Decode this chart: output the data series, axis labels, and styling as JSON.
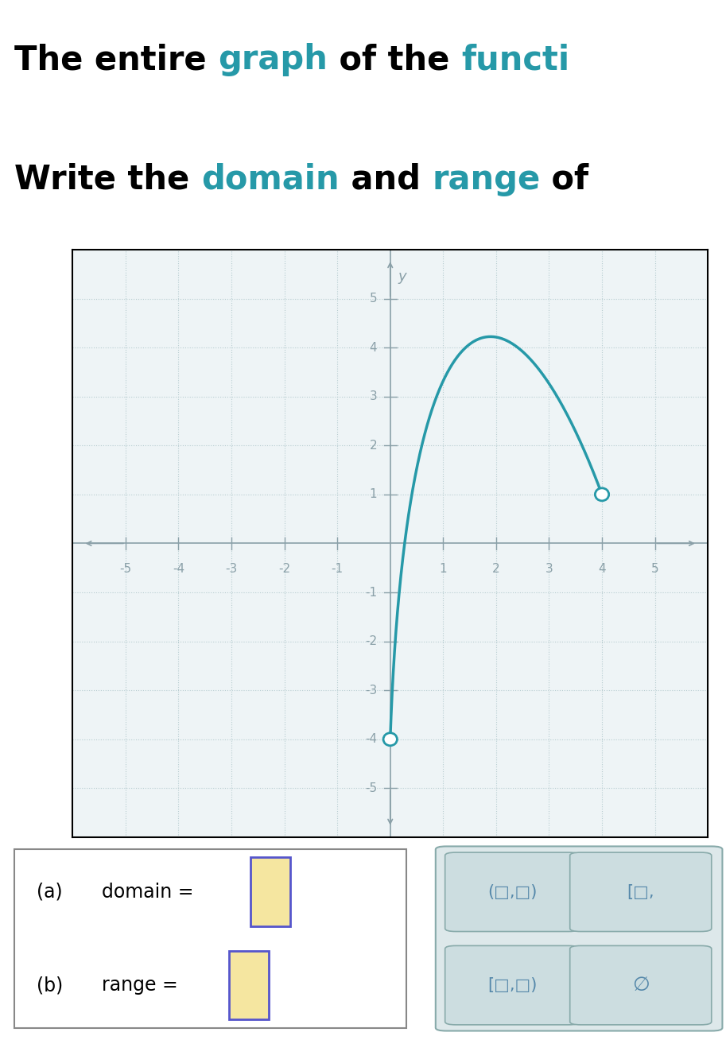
{
  "graph_color": "#2699a8",
  "open_circle_left_x": 0,
  "open_circle_left_y": -4,
  "open_circle_right_x": 4,
  "open_circle_right_y": 1,
  "peak_x": 2,
  "peak_y": 5,
  "xlim": [
    -6,
    6
  ],
  "ylim": [
    -6,
    6
  ],
  "xticks": [
    -5,
    -4,
    -3,
    -2,
    -1,
    1,
    2,
    3,
    4,
    5
  ],
  "yticks": [
    -5,
    -4,
    -3,
    -2,
    -1,
    1,
    2,
    3,
    4,
    5
  ],
  "grid_color": "#b8cdd1",
  "axis_color": "#8aa0a8",
  "tick_label_color": "#8aa0a8",
  "bg_color": "#ffffff",
  "plot_bg_color": "#eef4f6",
  "answer_box_color": "#f5e6a0",
  "answer_box_border": "#5555cc",
  "right_panel_bg": "#dde8ea",
  "right_panel_border": "#88aaaa",
  "button_text_color": "#5588aa",
  "button_bg": "#ccdde0",
  "title_black": "black",
  "title_teal": "#2699a8",
  "line1_parts": [
    [
      "The entire ",
      "black"
    ],
    [
      "graph",
      "#2699a8"
    ],
    [
      " of the ",
      "black"
    ],
    [
      "functi",
      "#2699a8"
    ]
  ],
  "line2_parts": [
    [
      "Write the ",
      "black"
    ],
    [
      "domain",
      "#2699a8"
    ],
    [
      " and ",
      "black"
    ],
    [
      "range",
      "#2699a8"
    ],
    [
      " of",
      "black"
    ]
  ]
}
